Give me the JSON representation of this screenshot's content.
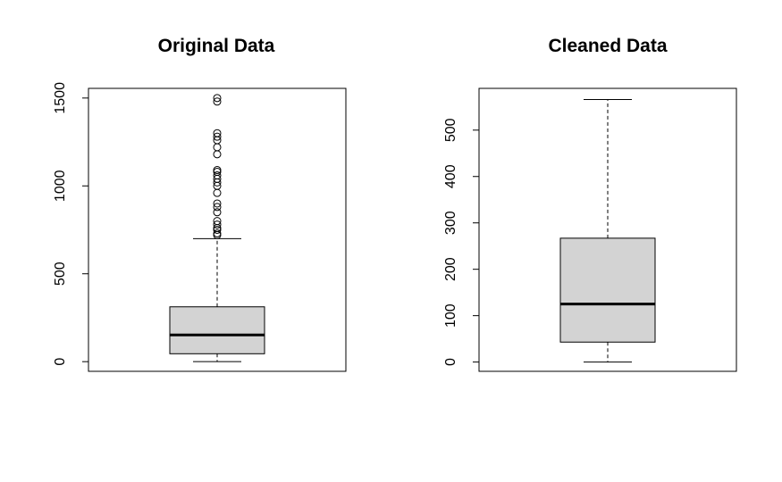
{
  "chart_data": [
    {
      "type": "box",
      "title": "Original Data",
      "xlabel": "",
      "ylabel": "",
      "ylim": [
        -55,
        1555
      ],
      "yticks": [
        0,
        500,
        1000,
        1500
      ],
      "box": {
        "min": 0,
        "q1": 45,
        "median": 152,
        "q3": 312,
        "whisker_high": 700
      },
      "outliers": [
        720,
        730,
        750,
        760,
        780,
        800,
        850,
        880,
        900,
        960,
        1000,
        1020,
        1040,
        1060,
        1080,
        1090,
        1180,
        1220,
        1260,
        1280,
        1300,
        1480,
        1500
      ],
      "box_fill": "#d3d3d3"
    },
    {
      "type": "box",
      "title": "Cleaned Data",
      "xlabel": "",
      "ylabel": "",
      "ylim": [
        -20,
        590
      ],
      "yticks": [
        0,
        100,
        200,
        300,
        400,
        500
      ],
      "box": {
        "min": 0,
        "q1": 43,
        "median": 125,
        "q3": 267,
        "whisker_high": 566
      },
      "outliers": [],
      "box_fill": "#d3d3d3"
    }
  ]
}
